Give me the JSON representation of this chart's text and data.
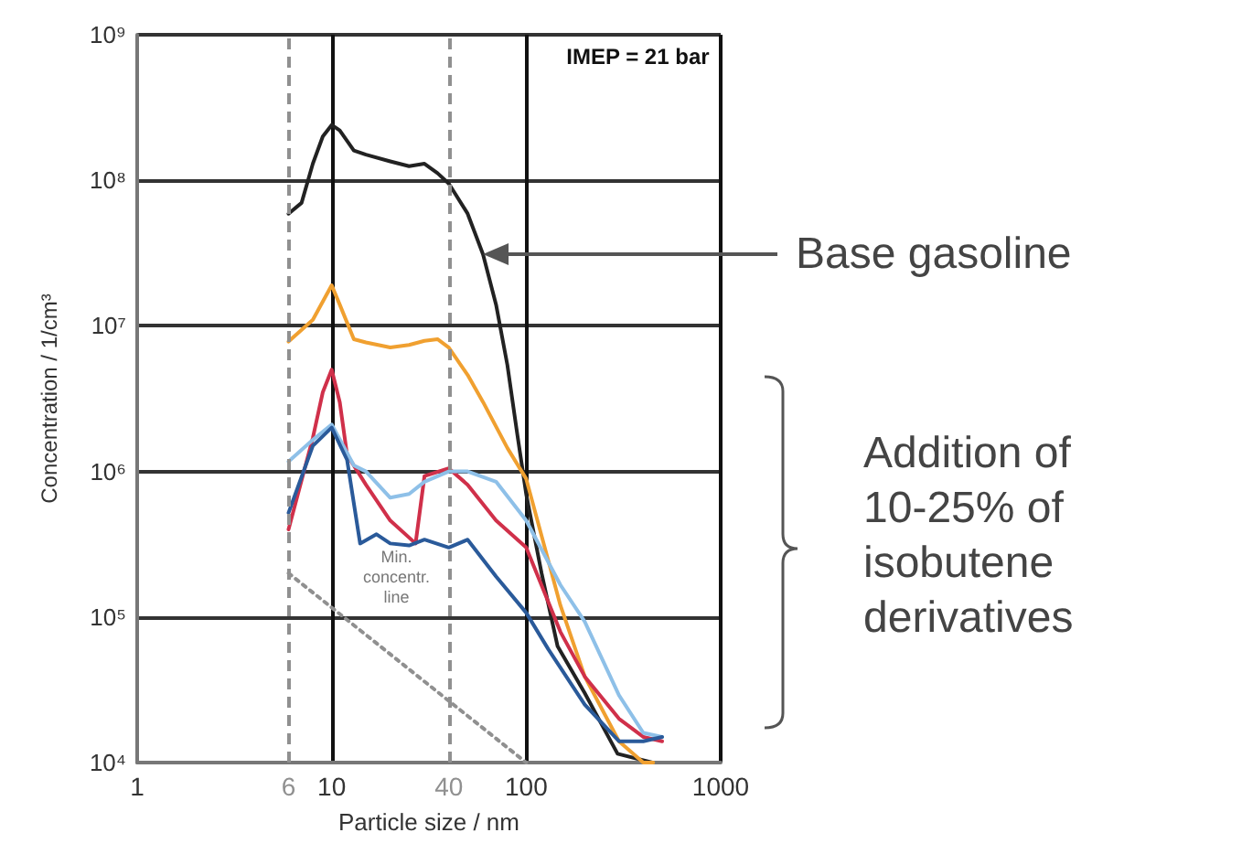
{
  "chart_data": {
    "type": "line",
    "xlabel": "Particle size / nm",
    "ylabel": "Concentration / 1/cm³",
    "log": "xy",
    "grid": true,
    "legend": false,
    "marker": "none",
    "line_style": "solid",
    "xlim": [
      1,
      1000
    ],
    "ylim": [
      10000,
      1000000000
    ],
    "xticks": [
      1,
      10,
      100,
      1000
    ],
    "yticks": [
      {
        "value": 10000,
        "label": "10⁴"
      },
      {
        "value": 100000,
        "label": "10⁵"
      },
      {
        "value": 1000000,
        "label": "10⁶"
      },
      {
        "value": 10000000,
        "label": "10⁷"
      },
      {
        "value": 100000000,
        "label": "10⁸"
      },
      {
        "value": 1000000000,
        "label": "10⁹"
      }
    ],
    "series": [
      {
        "color": "#222222",
        "x": [
          6,
          7,
          8,
          9,
          10,
          11,
          13,
          15,
          20,
          25,
          30,
          35,
          40,
          50,
          60,
          70,
          80,
          90,
          100,
          120,
          145,
          200,
          295,
          445
        ],
        "values": [
          59000000,
          70000000,
          130000000,
          200000000,
          240000000,
          220000000,
          160000000,
          150000000,
          135000000,
          125000000,
          130000000,
          112000000,
          95000000,
          59000000,
          31000000,
          14000000,
          5400000,
          1800000,
          700000,
          200000,
          63000,
          30000,
          11500,
          10000
        ]
      },
      {
        "color": "#f0a030",
        "x": [
          6,
          8,
          10,
          11,
          13,
          15,
          20,
          25,
          30,
          35,
          40,
          50,
          60,
          80,
          100,
          150,
          200,
          300,
          400,
          450
        ],
        "values": [
          7800000,
          11000000,
          19000000,
          14000000,
          8100000,
          7700000,
          7100000,
          7400000,
          7900000,
          8100000,
          7100000,
          4600000,
          3000000,
          1450000,
          890000,
          120000,
          39000,
          14000,
          10000,
          10000
        ]
      },
      {
        "color": "#d0304a",
        "x": [
          6,
          8,
          9,
          10,
          11,
          12,
          15,
          20,
          27,
          30,
          40,
          50,
          70,
          100,
          150,
          200,
          300,
          400,
          500
        ],
        "values": [
          400000,
          1700000,
          3500000,
          5000000,
          3000000,
          1300000,
          810000,
          460000,
          320000,
          930000,
          1050000,
          810000,
          460000,
          300000,
          79000,
          39000,
          20000,
          15000,
          14000
        ]
      },
      {
        "color": "#8ec0e8",
        "x": [
          6,
          8,
          10,
          13,
          15,
          20,
          25,
          30,
          40,
          50,
          70,
          100,
          150,
          200,
          300,
          400,
          500
        ],
        "values": [
          1170000,
          1650000,
          2100000,
          1100000,
          1000000,
          660000,
          700000,
          850000,
          1000000,
          1000000,
          850000,
          460000,
          166000,
          93000,
          29000,
          16000,
          15000
        ]
      },
      {
        "color": "#2a5a9a",
        "x": [
          6,
          8,
          10,
          12,
          14,
          17,
          20,
          25,
          30,
          40,
          50,
          70,
          100,
          130,
          200,
          300,
          400,
          500
        ],
        "values": [
          520000,
          1500000,
          2000000,
          1200000,
          320000,
          370000,
          320000,
          310000,
          340000,
          300000,
          340000,
          190000,
          107000,
          60000,
          25000,
          14000,
          14000,
          15000
        ]
      },
      {
        "name": "Min. concentr. line",
        "color": "#909090",
        "line_style": "dotted",
        "x": [
          6,
          100
        ],
        "values": [
          200000,
          10000
        ]
      }
    ],
    "ref_lines": [
      {
        "axis": "x",
        "value": 6,
        "label": "6",
        "color": "#909090",
        "line_style": "dashed"
      },
      {
        "axis": "x",
        "value": 40,
        "label": "40",
        "color": "#909090",
        "line_style": "dashed"
      }
    ],
    "annotations": [
      "IMEP = 21 bar",
      "Base gasoline",
      "Addition of 10-25% of isobutene derivatives"
    ]
  }
}
